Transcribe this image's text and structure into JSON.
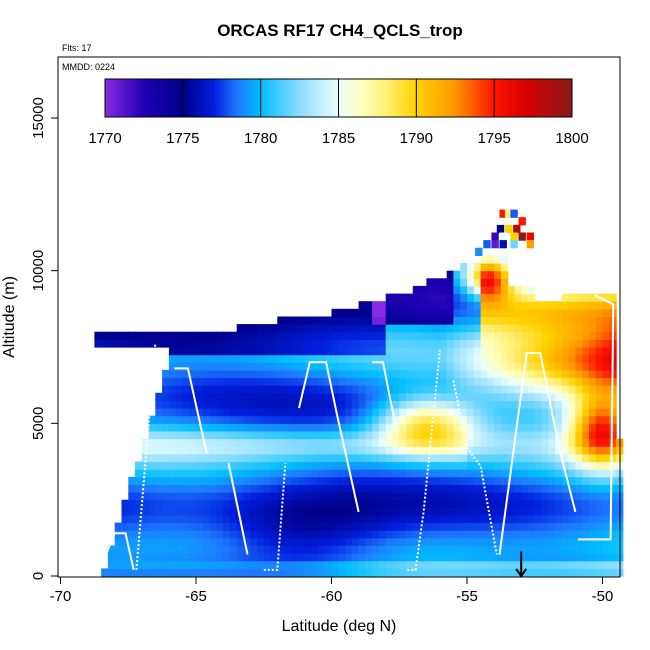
{
  "chart_data": {
    "type": "heatmap",
    "title": "ORCAS RF17 CH4_QCLS_trop",
    "flts_note": "Flts: 17",
    "mmdd_note": "MMDD: 0224",
    "xlabel": "Latitude (deg N)",
    "ylabel": "Altitude (m)",
    "xlim": [
      -70,
      -49
    ],
    "ylim": [
      0,
      16500
    ],
    "x_ticks": [
      -70,
      -65,
      -60,
      -55,
      -50
    ],
    "y_ticks": [
      0,
      5000,
      10000,
      15000
    ],
    "colorbar": {
      "ticks": [
        1770,
        1775,
        1780,
        1785,
        1790,
        1795,
        1800
      ],
      "range": [
        1770,
        1800
      ],
      "colors": [
        "#8a2be2",
        "#00008b",
        "#0000cd",
        "#1e90ff",
        "#00bfff",
        "#e0ffff",
        "#ffff80",
        "#ffd700",
        "#ff8c00",
        "#ff0000",
        "#8b1a1a"
      ]
    },
    "arrow_latitude": -53
  },
  "colors": {
    "frame": "#000000",
    "flight_track": "#ffffff",
    "arrow": "#000000"
  }
}
